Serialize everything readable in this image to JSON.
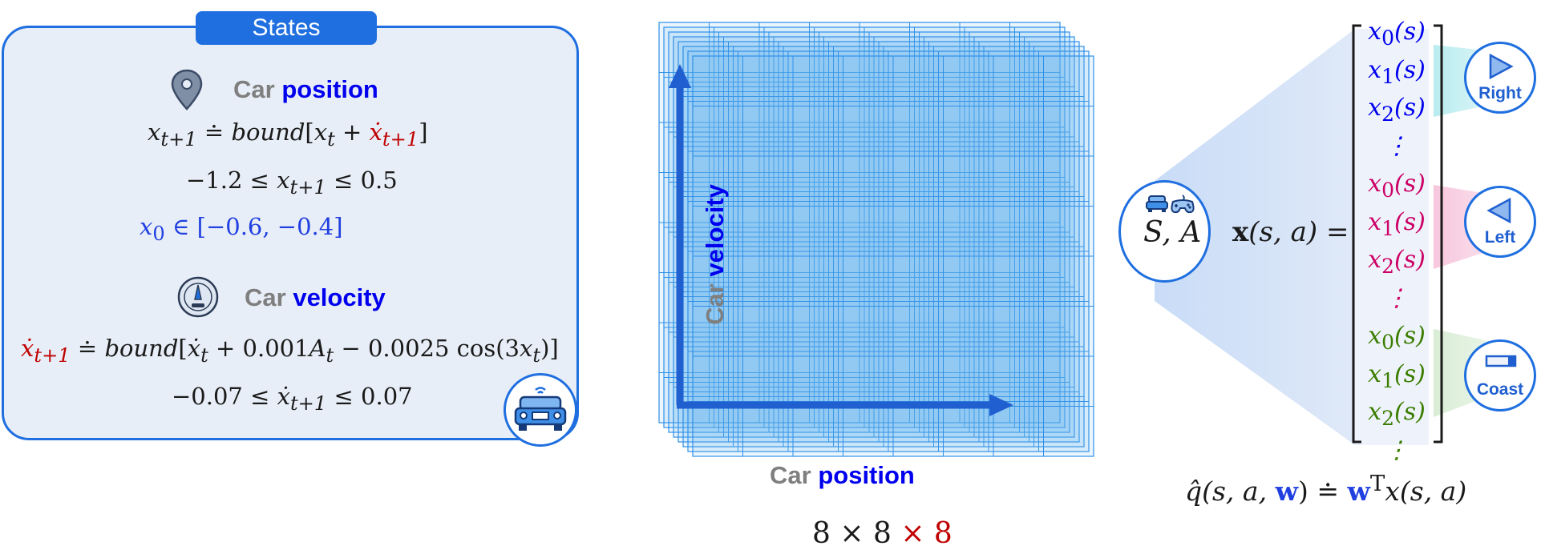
{
  "states_panel": {
    "tab_label": "States",
    "position_header": {
      "car": "Car",
      "word": "position"
    },
    "position_update": {
      "lhs": "x",
      "lhs_sub": "t+1",
      "op": "≐",
      "func": "bound",
      "open": "[",
      "x_t": "x",
      "x_t_sub": "t",
      "plus": "+",
      "xdot": "ẋ",
      "xdot_sub": "t+1",
      "close": "]"
    },
    "position_bounds": {
      "lo": "−1.2 ≤ ",
      "var": "x",
      "sub": "t+1",
      "hi": " ≤ 0.5"
    },
    "position_init": {
      "var": "x",
      "sub": "0",
      "rest": " ∈ [−0.6, −0.4]"
    },
    "velocity_header": {
      "car": "Car",
      "word": "velocity"
    },
    "velocity_update": {
      "lhs": "ẋ",
      "lhs_sub": "t+1",
      "op": "≐",
      "func": "bound",
      "p1": "[",
      "xd": "ẋ",
      "xd_sub": "t",
      "p2": " + 0.001",
      "A": "A",
      "A_sub": "t",
      "p3": " − 0.0025 cos(3",
      "x": "x",
      "x_sub": "t",
      "p4": ")]"
    },
    "velocity_bounds": {
      "lo": "−0.07 ≤ ",
      "var": "ẋ",
      "sub": "t+1",
      "hi": " ≤ 0.07"
    }
  },
  "grid": {
    "y_axis_label": {
      "car": "Car",
      "word": "velocity"
    },
    "x_axis_label": {
      "car": "Car",
      "word": "position"
    },
    "size": {
      "a": "8 × 8 ",
      "b": "× 8"
    }
  },
  "approximator": {
    "sa_label": "S, A",
    "feature_lhs": {
      "bold_x": "x",
      "args": "(s, a) ="
    },
    "vector": [
      {
        "x": "x",
        "sub": "0",
        "arg": "(s)",
        "color": "blue"
      },
      {
        "x": "x",
        "sub": "1",
        "arg": "(s)",
        "color": "blue"
      },
      {
        "x": "x",
        "sub": "2",
        "arg": "(s)",
        "color": "blue"
      },
      {
        "x": "⋮",
        "sub": "",
        "arg": "",
        "color": "blue"
      },
      {
        "x": "x",
        "sub": "0",
        "arg": "(s)",
        "color": "magenta"
      },
      {
        "x": "x",
        "sub": "1",
        "arg": "(s)",
        "color": "magenta"
      },
      {
        "x": "x",
        "sub": "2",
        "arg": "(s)",
        "color": "magenta"
      },
      {
        "x": "⋮",
        "sub": "",
        "arg": "",
        "color": "magenta"
      },
      {
        "x": "x",
        "sub": "0",
        "arg": "(s)",
        "color": "green"
      },
      {
        "x": "x",
        "sub": "1",
        "arg": "(s)",
        "color": "green"
      },
      {
        "x": "x",
        "sub": "2",
        "arg": "(s)",
        "color": "green"
      },
      {
        "x": "⋮",
        "sub": "",
        "arg": "",
        "color": "green"
      }
    ],
    "actions": [
      {
        "label": "Right",
        "icon": "triangle-right-icon"
      },
      {
        "label": "Left",
        "icon": "triangle-left-icon"
      },
      {
        "label": "Coast",
        "icon": "coast-bar-icon"
      }
    ],
    "q_equation": {
      "q": "q̂",
      "a1": "(s, a, ",
      "w": "w",
      "a2": ")  ≐  ",
      "w2": "w",
      "T": "T",
      "rest": "x(s, a)"
    }
  },
  "colors": {
    "accent": "#1f6fe0",
    "panel_bg": "#e8eef7",
    "red": "#c00000",
    "magenta": "#cc0066",
    "green": "#3b7d00",
    "blue_text": "#0000ee"
  }
}
